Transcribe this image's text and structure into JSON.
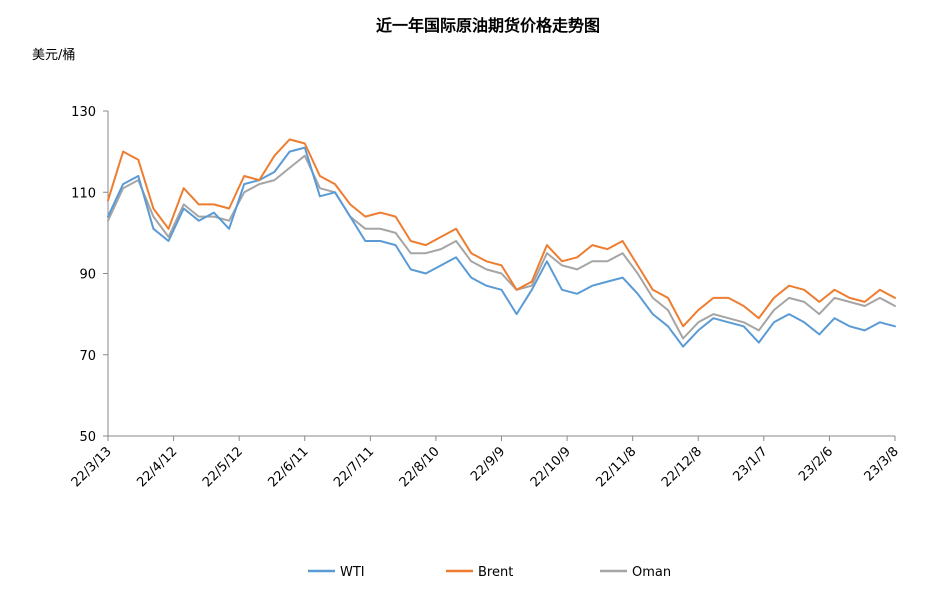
{
  "chart_data": {
    "type": "line",
    "title": "近一年国际原油期货价格走势图",
    "ylabel": "美元/桶",
    "xlabel": "",
    "ylim": [
      50,
      130
    ],
    "yticks": [
      50,
      70,
      90,
      110,
      130
    ],
    "xtick_labels": [
      "22/3/13",
      "22/4/12",
      "22/5/12",
      "22/6/11",
      "22/7/11",
      "22/8/10",
      "22/9/9",
      "22/10/9",
      "22/11/8",
      "22/12/8",
      "23/1/7",
      "23/2/6",
      "23/3/8"
    ],
    "grid": false,
    "legend": "bottom",
    "colors": {
      "WTI": "#5b9bd5",
      "Brent": "#ed7d31",
      "Oman": "#a5a5a5"
    },
    "series": [
      {
        "name": "WTI",
        "x": [
          "22/3/13",
          "22/3/20",
          "22/3/27",
          "22/4/3",
          "22/4/10",
          "22/4/17",
          "22/4/24",
          "22/5/1",
          "22/5/8",
          "22/5/15",
          "22/5/22",
          "22/5/29",
          "22/6/5",
          "22/6/12",
          "22/6/19",
          "22/6/26",
          "22/7/3",
          "22/7/10",
          "22/7/17",
          "22/7/24",
          "22/7/31",
          "22/8/7",
          "22/8/14",
          "22/8/21",
          "22/8/28",
          "22/9/4",
          "22/9/11",
          "22/9/18",
          "22/9/25",
          "22/10/2",
          "22/10/9",
          "22/10/16",
          "22/10/23",
          "22/10/30",
          "22/11/6",
          "22/11/13",
          "22/11/20",
          "22/11/27",
          "22/12/4",
          "22/12/11",
          "22/12/18",
          "22/12/25",
          "23/1/1",
          "23/1/8",
          "23/1/15",
          "23/1/22",
          "23/1/29",
          "23/2/5",
          "23/2/12",
          "23/2/19",
          "23/2/26",
          "23/3/5",
          "23/3/8"
        ],
        "values": [
          104,
          112,
          114,
          101,
          98,
          106,
          103,
          105,
          101,
          112,
          113,
          115,
          120,
          121,
          109,
          110,
          104,
          98,
          98,
          97,
          91,
          90,
          92,
          94,
          89,
          87,
          86,
          80,
          86,
          93,
          86,
          85,
          87,
          88,
          89,
          85,
          80,
          77,
          72,
          76,
          79,
          78,
          77,
          73,
          78,
          80,
          78,
          75,
          79,
          77,
          76,
          78,
          77
        ]
      },
      {
        "name": "Brent",
        "x": [
          "22/3/13",
          "22/3/20",
          "22/3/27",
          "22/4/3",
          "22/4/10",
          "22/4/17",
          "22/4/24",
          "22/5/1",
          "22/5/8",
          "22/5/15",
          "22/5/22",
          "22/5/29",
          "22/6/5",
          "22/6/12",
          "22/6/19",
          "22/6/26",
          "22/7/3",
          "22/7/10",
          "22/7/17",
          "22/7/24",
          "22/7/31",
          "22/8/7",
          "22/8/14",
          "22/8/21",
          "22/8/28",
          "22/9/4",
          "22/9/11",
          "22/9/18",
          "22/9/25",
          "22/10/2",
          "22/10/9",
          "22/10/16",
          "22/10/23",
          "22/10/30",
          "22/11/6",
          "22/11/13",
          "22/11/20",
          "22/11/27",
          "22/12/4",
          "22/12/11",
          "22/12/18",
          "22/12/25",
          "23/1/1",
          "23/1/8",
          "23/1/15",
          "23/1/22",
          "23/1/29",
          "23/2/5",
          "23/2/12",
          "23/2/19",
          "23/2/26",
          "23/3/5",
          "23/3/8"
        ],
        "values": [
          108,
          120,
          118,
          106,
          101,
          111,
          107,
          107,
          106,
          114,
          113,
          119,
          123,
          122,
          114,
          112,
          107,
          104,
          105,
          104,
          98,
          97,
          99,
          101,
          95,
          93,
          92,
          86,
          88,
          97,
          93,
          94,
          97,
          96,
          98,
          92,
          86,
          84,
          77,
          81,
          84,
          84,
          82,
          79,
          84,
          87,
          86,
          83,
          86,
          84,
          83,
          86,
          84
        ]
      },
      {
        "name": "Oman",
        "x": [
          "22/3/13",
          "22/3/20",
          "22/3/27",
          "22/4/3",
          "22/4/10",
          "22/4/17",
          "22/4/24",
          "22/5/1",
          "22/5/8",
          "22/5/15",
          "22/5/22",
          "22/5/29",
          "22/6/5",
          "22/6/12",
          "22/6/19",
          "22/6/26",
          "22/7/3",
          "22/7/10",
          "22/7/17",
          "22/7/24",
          "22/7/31",
          "22/8/7",
          "22/8/14",
          "22/8/21",
          "22/8/28",
          "22/9/4",
          "22/9/11",
          "22/9/18",
          "22/9/25",
          "22/10/2",
          "22/10/9",
          "22/10/16",
          "22/10/23",
          "22/10/30",
          "22/11/6",
          "22/11/13",
          "22/11/20",
          "22/11/27",
          "22/12/4",
          "22/12/11",
          "22/12/18",
          "22/12/25",
          "23/1/1",
          "23/1/8",
          "23/1/15",
          "23/1/22",
          "23/1/29",
          "23/2/5",
          "23/2/12",
          "23/2/19",
          "23/2/26",
          "23/3/5",
          "23/3/8"
        ],
        "values": [
          103,
          111,
          113,
          104,
          99,
          107,
          104,
          104,
          103,
          110,
          112,
          113,
          116,
          119,
          111,
          110,
          104,
          101,
          101,
          100,
          95,
          95,
          96,
          98,
          93,
          91,
          90,
          86,
          87,
          95,
          92,
          91,
          93,
          93,
          95,
          90,
          84,
          81,
          74,
          78,
          80,
          79,
          78,
          76,
          81,
          84,
          83,
          80,
          84,
          83,
          82,
          84,
          82
        ]
      }
    ]
  }
}
